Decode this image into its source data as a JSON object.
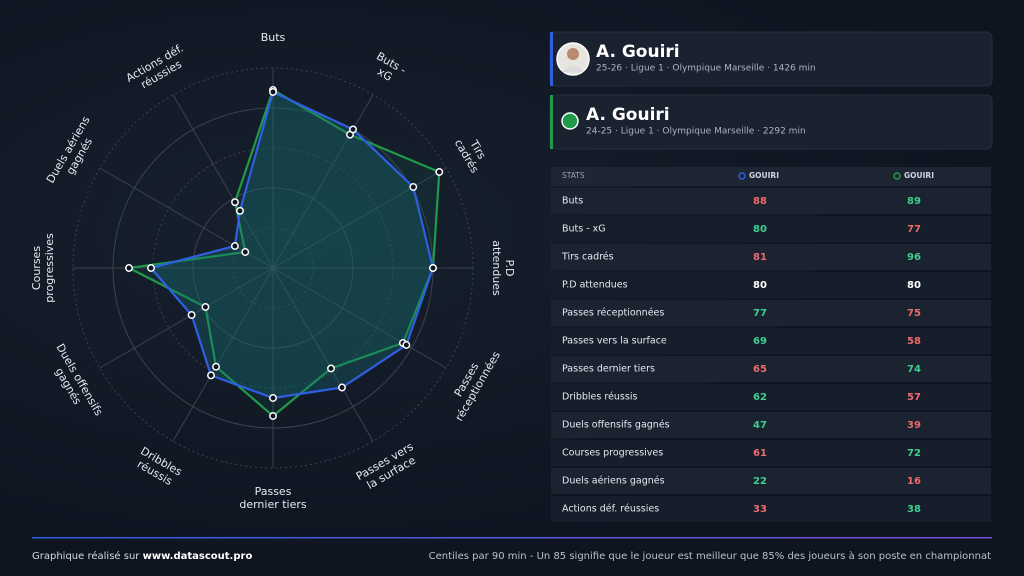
{
  "chart_data": {
    "type": "radar",
    "categories": [
      "Buts",
      "Buts - xG",
      "Tirs cadrés",
      "P.D attendues",
      "Passes réceptionnées",
      "Passes vers la surface",
      "Passes dernier tiers",
      "Dribbles réussis",
      "Duels offensifs gagnés",
      "Courses progressives",
      "Duels aériens gagnés",
      "Actions déf. réussies"
    ],
    "series": [
      {
        "name": "GOUIRI",
        "color": "#2f5fe0",
        "values": [
          88,
          80,
          81,
          80,
          77,
          69,
          65,
          62,
          47,
          61,
          22,
          33
        ]
      },
      {
        "name": "GOUIRI",
        "color": "#1f9a4a",
        "values": [
          89,
          77,
          96,
          80,
          75,
          58,
          74,
          57,
          39,
          72,
          16,
          38
        ]
      }
    ],
    "rlim": [
      0,
      100
    ],
    "rticks": [
      20,
      40,
      60,
      80,
      100
    ]
  },
  "players": [
    {
      "name": "A. Gouiri",
      "details": "25-26 · Ligue 1 · Olympique Marseille · 1426 min"
    },
    {
      "name": "A. Gouiri",
      "details": "24-25 · Ligue 1 · Olympique Marseille · 2292 min"
    }
  ],
  "table": {
    "header": "STATS"
  },
  "footer": {
    "left": "Graphique réalisé sur",
    "site": "www.datascout.pro",
    "right": "Centiles par 90 min - Un 85 signifie que le joueur est meilleur que 85% des joueurs à son poste en championnat"
  }
}
